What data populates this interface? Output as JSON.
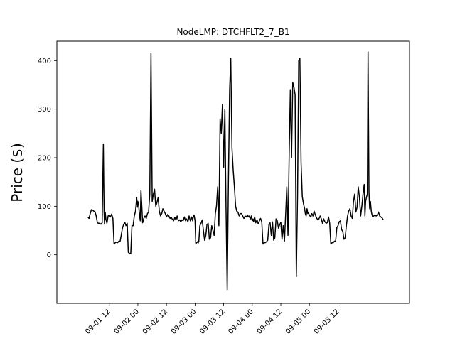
{
  "chart_data": {
    "type": "line",
    "title": "NodeLMP: DTCHFLT2_7_B1",
    "xlabel": "",
    "ylabel": "Price ($)",
    "ylim": [
      -100,
      440
    ],
    "xlim_hours": [
      -10,
      138
    ],
    "grid": false,
    "legend": "none",
    "line_color": "#000000",
    "x_unit": "hours since 2016-09-01 00:00",
    "x_tick_hours": [
      12,
      24,
      36,
      48,
      60,
      72,
      84,
      96,
      108
    ],
    "x_tick_labels": [
      "09-01 12",
      "09-02 00",
      "09-02 12",
      "09-03 00",
      "09-03 12",
      "09-04 00",
      "09-04 12",
      "09-05 00",
      "09-05 12"
    ],
    "y_ticks": [
      0,
      100,
      200,
      300,
      400
    ],
    "y_tick_labels": [
      "0",
      "100",
      "200",
      "300",
      "400"
    ],
    "series": [
      {
        "name": "",
        "x": [
          3.0,
          3.5,
          4.0,
          4.5,
          5.0,
          5.5,
          6.0,
          6.5,
          7.0,
          7.5,
          8.0,
          8.5,
          9.0,
          9.5,
          9.8,
          10.0,
          10.3,
          10.6,
          11.0,
          11.5,
          12.0,
          12.5,
          13.0,
          13.5,
          14.0,
          14.5,
          15.0,
          15.5,
          16.0,
          16.5,
          17.0,
          17.5,
          18.0,
          18.5,
          19.0,
          19.5,
          20.0,
          20.5,
          21.0,
          21.5,
          22.0,
          22.5,
          23.0,
          23.5,
          23.8,
          24.0,
          24.3,
          24.6,
          25.0,
          25.3,
          25.6,
          26.0,
          26.5,
          27.0,
          27.5,
          28.0,
          28.5,
          29.0,
          29.5,
          30.0,
          30.5,
          31.0,
          31.5,
          32.0,
          32.5,
          33.0,
          33.5,
          34.0,
          34.5,
          35.0,
          35.5,
          36.0,
          36.5,
          37.0,
          37.5,
          38.0,
          38.5,
          39.0,
          39.5,
          40.0,
          40.5,
          41.0,
          41.5,
          42.0,
          42.5,
          43.0,
          43.5,
          44.0,
          44.5,
          45.0,
          45.5,
          46.0,
          46.3,
          46.6,
          47.0,
          47.3,
          47.6,
          48.0,
          48.3,
          48.6,
          49.0,
          49.3,
          49.6,
          50.0,
          50.5,
          51.0,
          51.5,
          52.0,
          52.5,
          53.0,
          53.5,
          54.0,
          54.5,
          55.0,
          55.5,
          56.0,
          56.5,
          57.0,
          57.5,
          58.0,
          58.5,
          59.0,
          59.5,
          60.0,
          60.5,
          61.0,
          61.5,
          62.0,
          62.5,
          63.0,
          63.5,
          64.0,
          64.5,
          65.0,
          65.5,
          66.0,
          66.5,
          67.0,
          67.5,
          68.0,
          68.5,
          69.0,
          69.5,
          70.0,
          70.3,
          70.6,
          71.0,
          71.3,
          71.6,
          72.0,
          72.3,
          72.6,
          73.0,
          73.5,
          74.0,
          74.5,
          75.0,
          75.5,
          76.0,
          76.5,
          77.0,
          77.5,
          78.0,
          78.5,
          79.0,
          79.5,
          80.0,
          80.5,
          81.0,
          81.5,
          82.0,
          82.5,
          83.0,
          83.5,
          84.0,
          84.5,
          85.0,
          85.5,
          86.0,
          86.5,
          87.0,
          87.5,
          88.0,
          88.5,
          89.0,
          89.5,
          90.0,
          90.5,
          91.0,
          91.5,
          92.0,
          92.5,
          93.0,
          93.5,
          94.0,
          94.3,
          94.6,
          95.0,
          95.3,
          95.6,
          96.0,
          96.3,
          96.6,
          97.0,
          97.5,
          98.0,
          98.5,
          99.0,
          99.5,
          100.0,
          100.5,
          101.0,
          101.5,
          102.0,
          102.5,
          103.0,
          103.5,
          104.0,
          104.5,
          105.0,
          105.5,
          106.0,
          106.5,
          107.0,
          107.5,
          108.0,
          108.5,
          109.0,
          109.5,
          110.0,
          110.5,
          111.0,
          111.5,
          112.0,
          112.5,
          113.0,
          113.5,
          114.0,
          114.5,
          115.0,
          115.5,
          116.0,
          116.5,
          117.0,
          117.5,
          118.0,
          118.5,
          119.0,
          119.3,
          119.6,
          120.0,
          120.3,
          120.6,
          121.0,
          121.3,
          121.6,
          122.0,
          122.5,
          123.0,
          123.5,
          124.0,
          124.5,
          125.0,
          125.5,
          126.0,
          126.5,
          127.0
        ],
        "y": [
          78,
          75,
          85,
          93,
          92,
          90,
          89,
          80,
          66,
          65,
          65,
          63,
          66,
          228,
          90,
          63,
          88,
          73,
          65,
          80,
          82,
          78,
          84,
          75,
          22,
          25,
          26,
          25,
          28,
          27,
          40,
          55,
          62,
          67,
          60,
          65,
          5,
          3,
          2,
          60,
          60,
          80,
          90,
          118,
          98,
          110,
          103,
          85,
          70,
          133,
          105,
          66,
          75,
          80,
          75,
          85,
          88,
          125,
          415,
          110,
          125,
          135,
          100,
          108,
          118,
          90,
          80,
          85,
          95,
          90,
          85,
          78,
          83,
          80,
          75,
          77,
          73,
          70,
          77,
          72,
          80,
          70,
          72,
          68,
          72,
          70,
          78,
          70,
          74,
          68,
          80,
          70,
          74,
          78,
          70,
          80,
          82,
          70,
          22,
          25,
          27,
          24,
          28,
          60,
          65,
          72,
          50,
          30,
          40,
          62,
          65,
          32,
          35,
          60,
          50,
          40,
          85,
          100,
          140,
          60,
          280,
          250,
          310,
          180,
          300,
          100,
          -72,
          150,
          340,
          405,
          220,
          175,
          140,
          100,
          90,
          88,
          80,
          85,
          85,
          80,
          75,
          80,
          78,
          82,
          78,
          80,
          76,
          74,
          80,
          70,
          74,
          68,
          78,
          66,
          72,
          64,
          70,
          75,
          68,
          22,
          25,
          25,
          27,
          30,
          62,
          66,
          40,
          68,
          30,
          35,
          74,
          70,
          55,
          62,
          67,
          32,
          60,
          28,
          80,
          140,
          40,
          210,
          340,
          200,
          355,
          345,
          330,
          -45,
          120,
          400,
          405,
          190,
          120,
          105,
          95,
          85,
          80,
          95,
          85,
          87,
          81,
          80,
          78,
          85,
          80,
          90,
          82,
          76,
          72,
          74,
          80,
          74,
          65,
          74,
          68,
          65,
          66,
          78,
          66,
          22,
          25,
          25,
          28,
          28,
          56,
          60,
          68,
          70,
          52,
          48,
          32,
          35,
          60,
          80,
          90,
          95,
          80,
          75,
          110,
          125,
          88,
          98,
          140,
          118,
          80,
          100,
          125,
          145,
          80,
          110,
          120,
          125,
          418,
          130,
          95,
          110,
          88,
          78,
          80,
          82,
          80,
          82,
          88,
          80,
          78,
          76,
          72
        ]
      }
    ]
  }
}
